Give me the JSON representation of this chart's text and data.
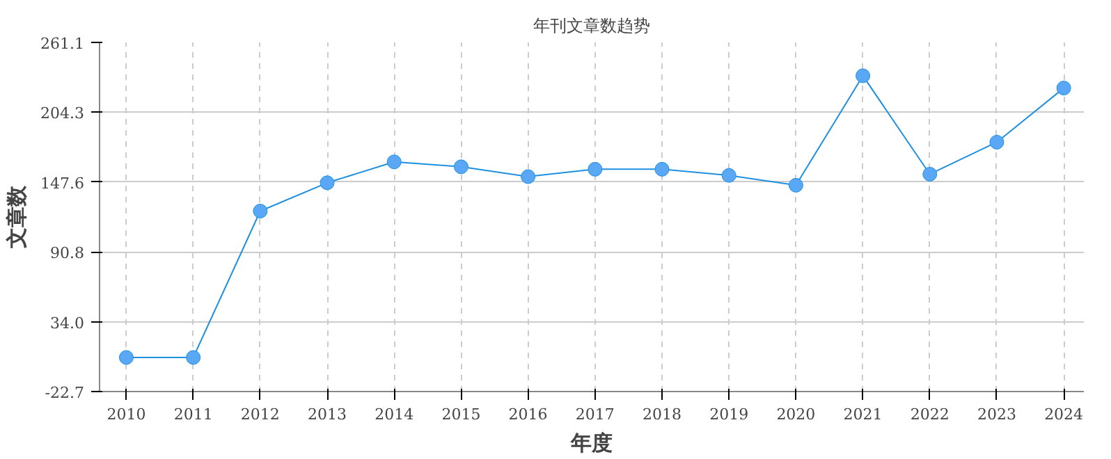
{
  "chart_data": {
    "type": "line",
    "title": "年刊文章数趋势",
    "xlabel": "年度",
    "ylabel": "文章数",
    "categories": [
      "2010",
      "2011",
      "2012",
      "2013",
      "2014",
      "2015",
      "2016",
      "2017",
      "2018",
      "2019",
      "2020",
      "2021",
      "2022",
      "2023",
      "2024"
    ],
    "series": [
      {
        "color": "#1e90e0",
        "values": [
          5,
          5,
          124,
          147,
          164,
          160,
          152,
          158,
          158,
          153,
          145,
          234,
          154,
          180,
          224
        ]
      }
    ],
    "ylim": [
      -22.7,
      261.1
    ],
    "yticks": [
      -22.7,
      {
        "value": 34,
        "label": "34.0"
      },
      90.8,
      147.6,
      204.3,
      261.1
    ],
    "grid": true,
    "marker": "circle",
    "line_style": "solid"
  }
}
